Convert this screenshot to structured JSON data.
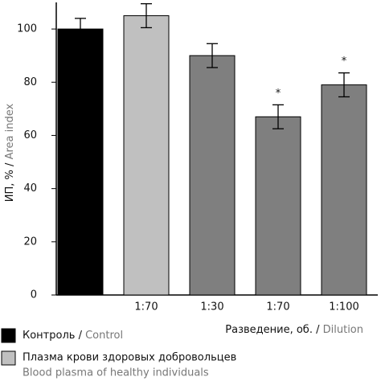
{
  "chart_data": {
    "type": "bar",
    "y_label": "ИП, % /",
    "y_label_en": "Area index",
    "x_label": "Разведение, об. /",
    "x_label_en": "Dilution",
    "categories": [
      null,
      "1:70",
      "1:30",
      "1:70",
      "1:100"
    ],
    "values": [
      100,
      105,
      90,
      67,
      79
    ],
    "errors": [
      4,
      4.5,
      4.5,
      4.5,
      4.5
    ],
    "colors": [
      "#000000",
      "#c0c0c0",
      "#7f7f7f",
      "#7f7f7f",
      "#7f7f7f"
    ],
    "annotations": [
      null,
      null,
      null,
      "*",
      "*"
    ],
    "ylim": [
      0,
      110
    ],
    "yticks": [
      0,
      20,
      40,
      60,
      80,
      100
    ],
    "legend": [
      {
        "name": "Контроль /",
        "name_en": "Control",
        "color": "#000000"
      },
      {
        "name": "Плазма крови здоровых добровольцев",
        "name_en": "Blood plasma of healthy individuals",
        "color": "#c0c0c0"
      }
    ]
  }
}
